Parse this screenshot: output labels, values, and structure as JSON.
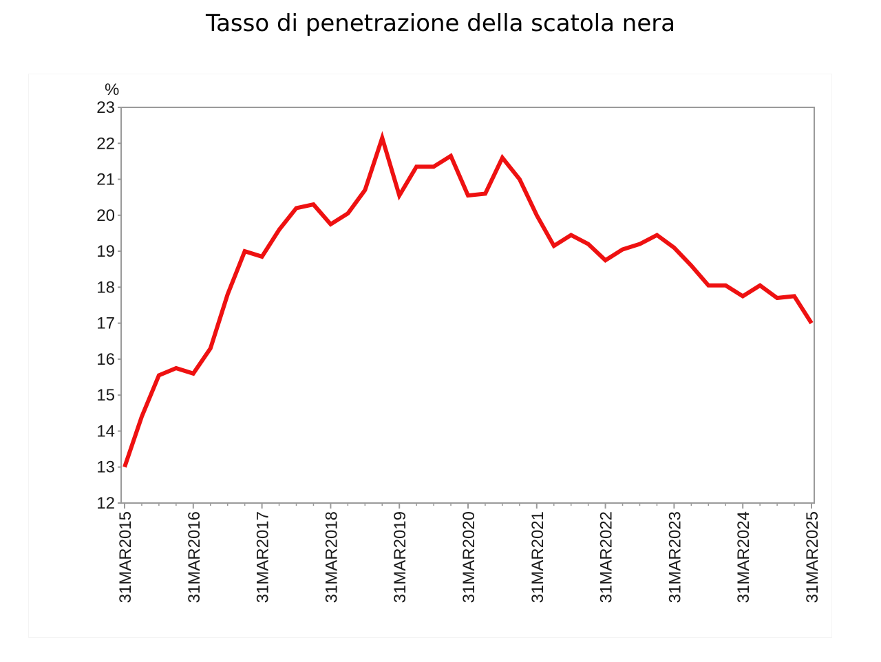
{
  "chart_data": {
    "type": "line",
    "title": "Tasso di penetrazione della scatola nera",
    "ylabel": "%",
    "xlabel": "",
    "ylim": [
      12,
      23
    ],
    "yticks": [
      12,
      13,
      14,
      15,
      16,
      17,
      18,
      19,
      20,
      21,
      22,
      23
    ],
    "xticks": [
      "31MAR2015",
      "31MAR2016",
      "31MAR2017",
      "31MAR2018",
      "31MAR2019",
      "31MAR2020",
      "31MAR2021",
      "31MAR2022",
      "31MAR2023",
      "31MAR2024",
      "31MAR2025"
    ],
    "x": [
      "31MAR2015",
      "30JUN2015",
      "30SEP2015",
      "31DEC2015",
      "31MAR2016",
      "30JUN2016",
      "30SEP2016",
      "31DEC2016",
      "31MAR2017",
      "30JUN2017",
      "30SEP2017",
      "31DEC2017",
      "31MAR2018",
      "30JUN2018",
      "30SEP2018",
      "31DEC2018",
      "31MAR2019",
      "30JUN2019",
      "30SEP2019",
      "31DEC2019",
      "31MAR2020",
      "30JUN2020",
      "30SEP2020",
      "31DEC2020",
      "31MAR2021",
      "30JUN2021",
      "30SEP2021",
      "31DEC2021",
      "31MAR2022",
      "30JUN2022",
      "30SEP2022",
      "31DEC2022",
      "31MAR2023",
      "30JUN2023",
      "30SEP2023",
      "31DEC2023",
      "31MAR2024",
      "30JUN2024",
      "30SEP2024",
      "31DEC2024",
      "31MAR2025"
    ],
    "series": [
      {
        "name": "",
        "color": "#ee1111",
        "values": [
          13.0,
          14.4,
          15.55,
          15.75,
          15.6,
          16.3,
          17.8,
          19.0,
          18.85,
          19.6,
          20.2,
          20.3,
          19.75,
          20.05,
          20.7,
          22.15,
          20.55,
          21.35,
          21.35,
          21.65,
          20.55,
          20.6,
          21.6,
          21.0,
          20.0,
          19.15,
          19.45,
          19.2,
          18.75,
          19.05,
          19.2,
          19.45,
          19.1,
          18.6,
          18.05,
          18.05,
          17.75,
          18.05,
          17.7,
          17.75,
          17.0
        ]
      }
    ],
    "grid": "horizontal",
    "legend": "none"
  },
  "colors": {
    "line": "#ee1111",
    "grid": "#c8c8c8",
    "axis": "#9a9a9a",
    "text": "#1a1a1a"
  }
}
